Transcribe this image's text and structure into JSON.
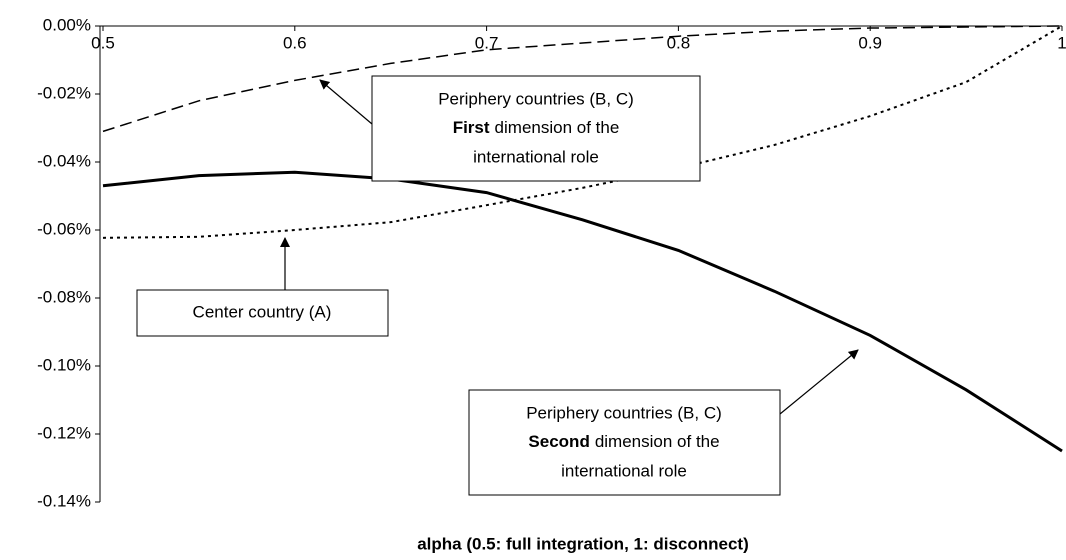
{
  "chart_data": {
    "type": "line",
    "x_label": "alpha (0.5: full integration, 1: disconnect)",
    "x": [
      0.5,
      0.55,
      0.6,
      0.65,
      0.7,
      0.75,
      0.8,
      0.85,
      0.9,
      0.95,
      1
    ],
    "xlim": [
      0.5,
      1
    ],
    "xticks": [
      0.5,
      0.6,
      0.7,
      0.8,
      0.9,
      1
    ],
    "ylim": [
      -0.14,
      0
    ],
    "yticks": [
      {
        "value": 0,
        "label": "0.00%"
      },
      {
        "value": -0.02,
        "label": "-0.02%"
      },
      {
        "value": -0.04,
        "label": "-0.04%"
      },
      {
        "value": -0.06,
        "label": "-0.06%"
      },
      {
        "value": -0.08,
        "label": "-0.08%"
      },
      {
        "value": -0.1,
        "label": "-0.10%"
      },
      {
        "value": -0.12,
        "label": "-0.12%"
      },
      {
        "value": -0.14,
        "label": "-0.14%"
      }
    ],
    "series": [
      {
        "style": "dashed",
        "color": "#000000",
        "values": [
          -0.031,
          -0.022,
          -0.016,
          -0.011,
          -0.007,
          -0.005,
          -0.003,
          -0.0015,
          -0.0006,
          -0.0003,
          0
        ]
      },
      {
        "style": "dotted",
        "color": "#000000",
        "values": [
          -0.0623,
          -0.062,
          -0.06,
          -0.0577,
          -0.0527,
          -0.0476,
          -0.0418,
          -0.035,
          -0.0265,
          -0.0165,
          0
        ]
      },
      {
        "style": "solid",
        "color": "#000000",
        "values": [
          -0.047,
          -0.044,
          -0.043,
          -0.045,
          -0.049,
          -0.057,
          -0.066,
          -0.078,
          -0.091,
          -0.107,
          -0.125
        ]
      }
    ],
    "annotations": [
      {
        "text": [
          "Periphery countries (B, C)",
          "First",
          "dimension of the",
          "international role"
        ]
      },
      {
        "text": [
          "Center country (A)"
        ]
      },
      {
        "text": [
          "Periphery countries (B, C)",
          "Second",
          "dimension of the",
          "international role"
        ]
      }
    ]
  }
}
